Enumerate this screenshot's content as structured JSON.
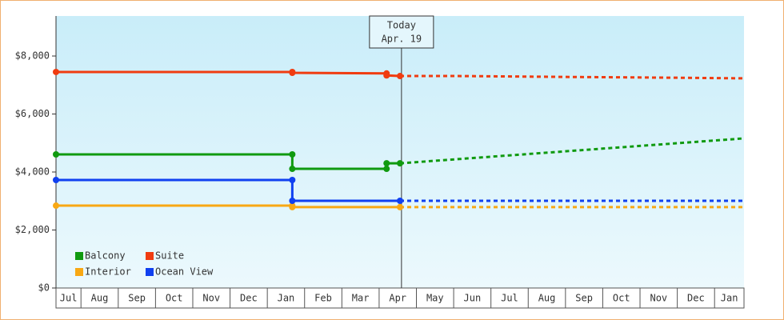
{
  "chart_data": {
    "type": "line",
    "xlim": [
      0.33,
      18.79
    ],
    "xticks": [
      1,
      2,
      3,
      4,
      5,
      6,
      7,
      8,
      9,
      10,
      11,
      12,
      13,
      14,
      15,
      16,
      17,
      18
    ],
    "categories": [
      "Jul",
      "Aug",
      "Sep",
      "Oct",
      "Nov",
      "Dec",
      "Jan",
      "Feb",
      "Mar",
      "Apr",
      "May",
      "Jun",
      "Jul",
      "Aug",
      "Sep",
      "Oct",
      "Nov",
      "Dec",
      "Jan"
    ],
    "ylim": [
      0,
      9380
    ],
    "yticks": [
      {
        "value": 0,
        "label": "$0"
      },
      {
        "value": 2000,
        "label": "$2,000"
      },
      {
        "value": 4000,
        "label": "$4,000"
      },
      {
        "value": 6000,
        "label": "$6,000"
      },
      {
        "value": 8000,
        "label": "$8,000"
      }
    ],
    "today": {
      "x": 9.6,
      "label": "Today",
      "date": "Apr. 19"
    },
    "series": [
      {
        "name": "Balcony",
        "color": "#109a10",
        "x": [
          0.33,
          6.67,
          6.67,
          9.2,
          9.2,
          9.56
        ],
        "values": [
          4607,
          4607,
          4110,
          4110,
          4300,
          4300
        ],
        "forecast_x": [
          9.56,
          18.79
        ],
        "forecast_values": [
          4300,
          5160
        ]
      },
      {
        "name": "Suite",
        "color": "#f03c10",
        "x": [
          0.33,
          6.67,
          6.67,
          9.2,
          9.2,
          9.56
        ],
        "values": [
          7450,
          7450,
          7420,
          7400,
          7330,
          7310
        ],
        "forecast_x": [
          9.56,
          11.1,
          13.9,
          17.1,
          18.79
        ],
        "forecast_values": [
          7310,
          7310,
          7280,
          7250,
          7230
        ]
      },
      {
        "name": "Interior",
        "color": "#f8a814",
        "x": [
          0.33,
          6.67,
          6.67,
          9.56
        ],
        "values": [
          2840,
          2840,
          2790,
          2790
        ],
        "forecast_x": [
          9.56,
          18.79
        ],
        "forecast_values": [
          2790,
          2790
        ]
      },
      {
        "name": "Ocean View",
        "color": "#1040f0",
        "x": [
          0.33,
          6.67,
          6.67,
          9.56
        ],
        "values": [
          3724,
          3724,
          3007,
          3007
        ],
        "forecast_x": [
          9.56,
          18.79
        ],
        "forecast_values": [
          3007,
          3007
        ]
      }
    ]
  }
}
